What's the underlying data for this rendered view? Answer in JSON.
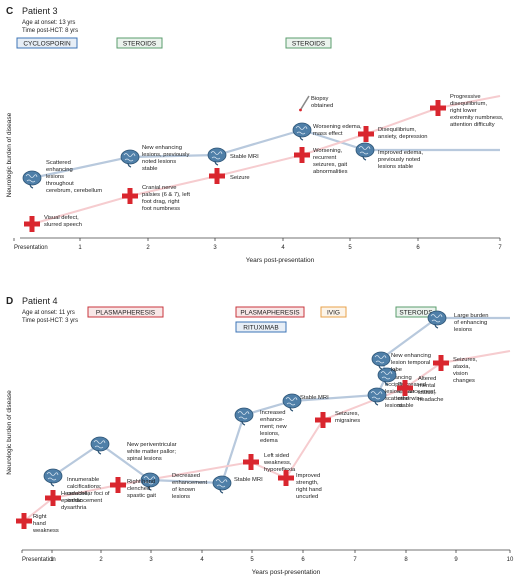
{
  "panels": [
    {
      "letter": "C",
      "title": "Patient 3",
      "onset": "Age at onset: 13 yrs",
      "post_hct": "Time post-HCT: 8 yrs",
      "ylabel": "Neurologic burden of disease",
      "xlabel": "Years post-presentation",
      "xticks": [
        "Presentation",
        "1",
        "2",
        "3",
        "4",
        "5",
        "6",
        "7"
      ],
      "treatments": [
        {
          "label": "CYCLOSPORIN",
          "kind": "blue",
          "start": -0.5,
          "end": 0.1
        },
        {
          "label": "STEROIDS",
          "kind": "green",
          "start": 1.5,
          "end": 2.0
        },
        {
          "label": "STEROIDS",
          "kind": "green",
          "start": 3.9,
          "end": 4.6
        }
      ],
      "brain_events": [
        {
          "t": -0.3,
          "level": 0.43,
          "lines": [
            "Scattered",
            "enhancing",
            "lesions",
            "throughout",
            "cerebrum, cerebellum"
          ]
        },
        {
          "t": 0.95,
          "level": 0.57,
          "lines": [
            "New enhancing",
            "lesions, previously",
            "noted lesions",
            "stable"
          ]
        },
        {
          "t": 2.98,
          "level": 0.59,
          "lines": [
            "Stable MRI"
          ]
        },
        {
          "t": 4.2,
          "level": 0.72,
          "lines": [
            "Worsening edema,",
            "mass effect"
          ]
        },
        {
          "t": 5.0,
          "level": 0.56,
          "lines": [
            "Improved edema,",
            "previously noted",
            "lesions stable"
          ]
        }
      ],
      "clinical_events": [
        {
          "t": -0.3,
          "level": 0.1,
          "lines": [
            "Visual defect,",
            "slurred speech"
          ]
        },
        {
          "t": 1.5,
          "level": 0.3,
          "lines": [
            "Cranial nerve",
            "palsies (6 & 7), left",
            "foot drag, right",
            "foot numbness"
          ]
        },
        {
          "t": 3.0,
          "level": 0.5,
          "lines": [
            "Seizure"
          ]
        },
        {
          "t": 4.3,
          "level": 0.6,
          "lines": [
            "Worsening,",
            "recurrent",
            "seizures, gait",
            "abnormalities"
          ]
        },
        {
          "t": 5.2,
          "level": 0.7,
          "lines": [
            "Disequilibrium,",
            "anxiety, depression"
          ]
        },
        {
          "t": 6.3,
          "level": 0.85,
          "lines": [
            "Progressive",
            "disequilibrium,",
            "right lower",
            "extremity numbness,",
            "attention difficulty"
          ]
        }
      ],
      "biopsy": {
        "t": 4.3,
        "lines": [
          "Biopsy",
          "obtained"
        ]
      }
    },
    {
      "letter": "D",
      "title": "Patient 4",
      "onset": "Age at onset: 11 yrs",
      "post_hct": "Time post-HCT: 3 yrs",
      "ylabel": "Neurologic burden of disease",
      "xlabel": "Years post-presentation",
      "xticks": [
        "Presentation",
        "1",
        "2",
        "3",
        "4",
        "5",
        "6",
        "7",
        "8",
        "9",
        "10"
      ],
      "treatments": [
        {
          "label": "PLASMAPHERESIS",
          "kind": "red",
          "start": 1.2,
          "end": 2.8
        },
        {
          "label": "PLASMAPHERESIS",
          "kind": "red",
          "start": 4.4,
          "end": 6.1
        },
        {
          "label": "RITUXIMAB",
          "kind": "blue",
          "start": 4.4,
          "end": 5.6
        },
        {
          "label": "IVIG",
          "kind": "orange",
          "start": 6.3,
          "end": 7.1
        },
        {
          "label": "STEROIDS",
          "kind": "green",
          "start": 7.7,
          "end": 8.5
        }
      ],
      "brain_events": [
        {
          "t": 0.6,
          "level": 0.3,
          "lines": [
            "Innumerable",
            "calcifications;",
            "cerebellar foci of",
            "enhancement"
          ]
        },
        {
          "t": 2.0,
          "level": 0.4,
          "lines": [
            "New periventricular",
            "white matter pallor;",
            "spinal lesions"
          ]
        },
        {
          "t": 3.2,
          "level": 0.3,
          "lines": [
            "Decreased",
            "enhancement",
            "of known",
            "lesions"
          ]
        },
        {
          "t": 4.45,
          "level": 0.25,
          "lines": [
            "Stable MRI"
          ]
        },
        {
          "t": 5.0,
          "level": 0.5,
          "lines": [
            "Increased",
            "enhance-",
            "ment; new",
            "lesions,",
            "edema"
          ]
        },
        {
          "t": 5.8,
          "level": 0.55,
          "lines": [
            "Stable MRI"
          ]
        },
        {
          "t": 7.0,
          "level": 0.65,
          "lines": [
            "New",
            "enhancing",
            "occipital",
            "lesion, new",
            "scattered",
            "lesions"
          ]
        },
        {
          "t": 7.3,
          "level": 0.62,
          "lines": [
            "Decreased",
            "enhance-ment,",
            "otherwise",
            "stable"
          ]
        },
        {
          "t": 7.9,
          "level": 0.85,
          "lines": [
            "New enhancing",
            "lesion temporal",
            "lobe"
          ]
        },
        {
          "t": 9.5,
          "level": 0.95,
          "lines": [
            "Large burden",
            "of enhancing",
            "lesions"
          ]
        }
      ],
      "clinical_events": [
        {
          "t": 0.1,
          "level": 0.1,
          "lines": [
            "Right",
            "hand",
            "weakness"
          ]
        },
        {
          "t": 0.5,
          "level": 0.2,
          "lines": [
            "Headache,",
            "episodic",
            "dysarthria"
          ]
        },
        {
          "t": 1.8,
          "level": 0.25,
          "lines": [
            "Right hand",
            "clenched,",
            "spastic gait"
          ]
        },
        {
          "t": 5.2,
          "level": 0.4,
          "lines": [
            "Left sided",
            "weakness,",
            "hyporeflexia"
          ]
        },
        {
          "t": 5.7,
          "level": 0.35,
          "lines": [
            "Improved",
            "strength,",
            "right hand",
            "uncurled"
          ]
        },
        {
          "t": 6.3,
          "level": 0.58,
          "lines": [
            "Seizures,",
            "migraines"
          ]
        },
        {
          "t": 7.9,
          "level": 0.7,
          "lines": [
            "Altered",
            "mental",
            "status,",
            "headache"
          ]
        },
        {
          "t": 8.9,
          "level": 0.78,
          "lines": [
            "Seizures,",
            "ataxia,",
            "vision",
            "changes"
          ]
        }
      ]
    }
  ],
  "colors": {
    "red": "#d9262e",
    "blue_line": "#b8c9dd",
    "pink_line": "#f6cccf",
    "brain_blue": "#4f7fa8",
    "treat_red": "#c8363d",
    "treat_blue": "#3d75b7",
    "treat_green": "#5b9e6e",
    "treat_orange": "#e8a24a"
  }
}
